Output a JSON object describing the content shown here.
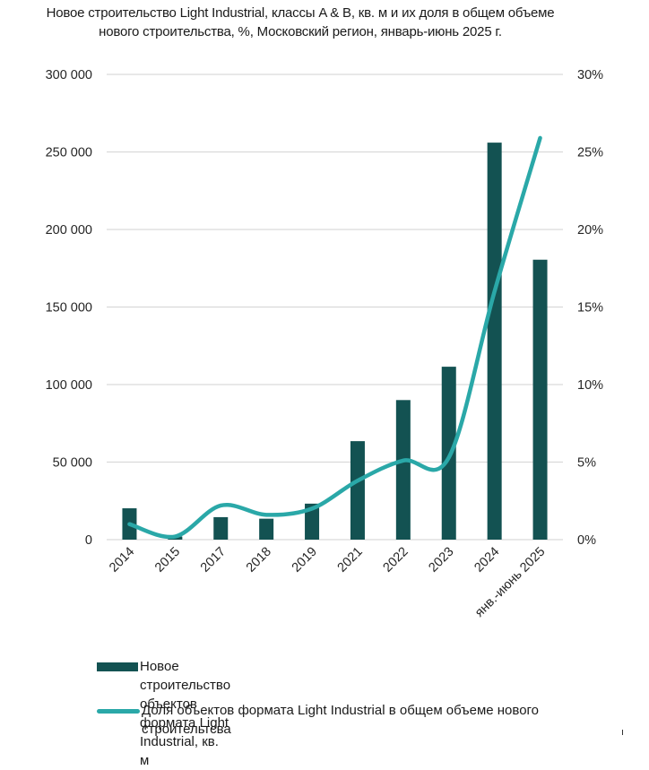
{
  "chart_data": {
    "type": "bar+line",
    "title": "Новое строительство Light Industrial, классы A & B, кв. м и их доля в общем объеме нового строительства, %, Московский регион, январь-июнь 2025 г.",
    "categories": [
      "2014",
      "2015",
      "2017",
      "2018",
      "2019",
      "2021",
      "2022",
      "2023",
      "2024",
      "янв.-июнь 2025"
    ],
    "series": [
      {
        "name": "Новое строительство объектов формата Light Industrial, кв. м",
        "type": "bar",
        "axis": "left",
        "color": "#135252",
        "values": [
          20200,
          2000,
          14500,
          13500,
          23200,
          63500,
          90000,
          111500,
          256000,
          180500
        ]
      },
      {
        "name": "Доля объектов формата Light Industrial в общем объеме нового строительтсва",
        "type": "line",
        "axis": "right",
        "color": "#2aa8a8",
        "values": [
          1.0,
          0.2,
          2.2,
          1.6,
          2.0,
          3.8,
          5.1,
          5.3,
          16.0,
          25.9
        ]
      }
    ],
    "y_left": {
      "min": 0,
      "max": 300000,
      "step": 50000,
      "tick_labels": [
        "0",
        "50 000",
        "100 000",
        "150 000",
        "200 000",
        "250 000",
        "300 000"
      ]
    },
    "y_right": {
      "min": 0,
      "max": 30,
      "step": 5,
      "tick_labels": [
        "0%",
        "5%",
        "10%",
        "15%",
        "20%",
        "25%",
        "30%"
      ]
    },
    "xlabel": "",
    "ylabel": "",
    "grid": true,
    "legend_position": "bottom"
  },
  "legend": {
    "bar_label": "Новое строительство объектов формата Light Industrial, кв. м",
    "line_label": "Доля объектов формата Light Industrial в общем объеме нового строительтсва"
  }
}
